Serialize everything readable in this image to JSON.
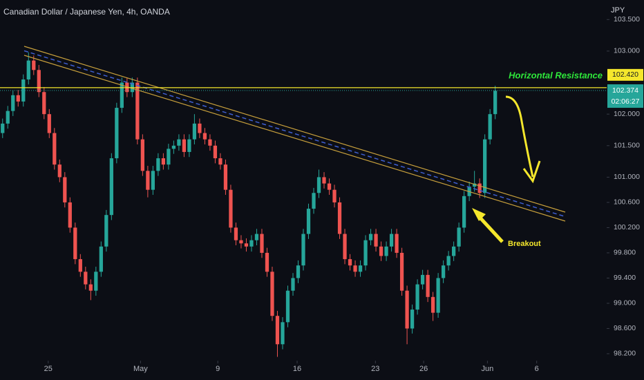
{
  "chart_data": {
    "type": "candlestick",
    "title": "Canadian Dollar / Japanese Yen, 4h, OANDA",
    "currency": "JPY",
    "up_color": "#26a69a",
    "down_color": "#ef5350",
    "grid": false,
    "categories": [
      null,
      null,
      null,
      null,
      null,
      null,
      null,
      null,
      null,
      null,
      null,
      null,
      null,
      null,
      null,
      null,
      null,
      null,
      null,
      null,
      null,
      null,
      null,
      null,
      null,
      null,
      null,
      null,
      null,
      null,
      null,
      null,
      null,
      null,
      null,
      null,
      null,
      null,
      null,
      null,
      null,
      null,
      null,
      null,
      null,
      null,
      null,
      null,
      null,
      null,
      null,
      null,
      null,
      null,
      null,
      null,
      null,
      null,
      null,
      null,
      null,
      null,
      null,
      null,
      null,
      null,
      null,
      null,
      null,
      null,
      null,
      null,
      null,
      null,
      null,
      null,
      null,
      null,
      null,
      null,
      null,
      null,
      null,
      null,
      null,
      null,
      null,
      null,
      null,
      null,
      null,
      null,
      null,
      null,
      null,
      null
    ],
    "open": [
      101.7,
      101.85,
      102.05,
      102.3,
      102.2,
      102.55,
      102.85,
      102.7,
      102.35,
      102.0,
      101.7,
      101.2,
      101.0,
      100.6,
      100.2,
      99.7,
      99.5,
      99.3,
      99.2,
      99.5,
      99.9,
      100.4,
      101.3,
      102.1,
      102.5,
      102.35,
      102.5,
      101.6,
      101.1,
      100.8,
      101.1,
      101.3,
      101.2,
      101.45,
      101.5,
      101.6,
      101.4,
      101.6,
      101.85,
      101.7,
      101.6,
      101.5,
      101.3,
      101.2,
      100.8,
      100.2,
      100.0,
      99.95,
      99.9,
      100.0,
      100.1,
      99.8,
      99.5,
      98.8,
      98.35,
      98.7,
      99.2,
      99.4,
      99.6,
      100.1,
      100.5,
      100.75,
      101.0,
      100.9,
      100.8,
      100.6,
      100.1,
      99.7,
      99.6,
      99.5,
      99.6,
      100.0,
      100.1,
      99.9,
      99.75,
      99.9,
      100.1,
      99.8,
      99.2,
      98.6,
      98.9,
      99.3,
      99.45,
      99.1,
      98.85,
      99.4,
      99.6,
      99.75,
      99.9,
      100.2,
      100.7,
      100.85,
      100.9,
      100.75,
      101.6,
      102.0
    ],
    "high": [
      101.93,
      102.13,
      102.38,
      102.38,
      102.63,
      102.98,
      102.93,
      102.78,
      102.43,
      102.08,
      101.78,
      101.28,
      101.08,
      100.68,
      100.28,
      99.78,
      99.58,
      99.38,
      99.58,
      99.98,
      100.48,
      101.38,
      102.18,
      102.58,
      102.58,
      102.58,
      102.58,
      101.68,
      101.18,
      101.18,
      101.38,
      101.38,
      101.53,
      101.58,
      101.68,
      101.68,
      101.68,
      102.0,
      101.93,
      101.78,
      101.68,
      101.58,
      101.38,
      101.28,
      100.88,
      100.28,
      100.08,
      100.03,
      100.08,
      100.18,
      100.18,
      99.88,
      99.58,
      98.88,
      98.78,
      99.28,
      99.48,
      99.68,
      100.18,
      100.58,
      100.83,
      101.12,
      101.08,
      100.98,
      100.88,
      100.68,
      100.18,
      99.78,
      99.68,
      99.68,
      100.08,
      100.18,
      100.18,
      99.98,
      99.98,
      100.18,
      100.18,
      99.88,
      99.28,
      98.98,
      99.38,
      99.53,
      99.53,
      99.18,
      99.48,
      99.68,
      99.83,
      99.98,
      100.28,
      100.78,
      100.93,
      101.1,
      100.98,
      101.68,
      102.08,
      102.45
    ],
    "low": [
      101.62,
      101.77,
      101.97,
      102.12,
      102.12,
      102.47,
      102.62,
      102.27,
      101.92,
      101.62,
      101.12,
      100.92,
      100.52,
      100.12,
      99.62,
      99.42,
      99.22,
      99.05,
      99.12,
      99.42,
      99.82,
      100.32,
      101.22,
      102.02,
      102.27,
      102.27,
      101.52,
      101.02,
      100.68,
      100.72,
      101.02,
      101.12,
      101.12,
      101.37,
      101.42,
      101.32,
      101.32,
      101.52,
      101.62,
      101.52,
      101.42,
      101.22,
      101.12,
      100.72,
      100.12,
      99.92,
      99.87,
      99.82,
      99.82,
      99.92,
      99.72,
      99.42,
      98.72,
      98.15,
      98.27,
      98.62,
      99.12,
      99.32,
      99.52,
      100.02,
      100.42,
      100.67,
      100.82,
      100.72,
      100.52,
      100.02,
      99.62,
      99.52,
      99.42,
      99.42,
      99.52,
      99.92,
      99.82,
      99.67,
      99.67,
      99.82,
      99.72,
      99.12,
      98.35,
      98.52,
      98.82,
      99.22,
      99.02,
      98.72,
      98.77,
      99.32,
      99.52,
      99.67,
      99.82,
      100.12,
      100.62,
      100.77,
      100.67,
      100.67,
      101.52,
      101.92
    ],
    "close": [
      101.85,
      102.05,
      102.3,
      102.2,
      102.55,
      102.85,
      102.7,
      102.35,
      102.0,
      101.7,
      101.2,
      101.0,
      100.6,
      100.2,
      99.7,
      99.5,
      99.3,
      99.2,
      99.5,
      99.9,
      100.4,
      101.3,
      102.1,
      102.5,
      102.35,
      102.5,
      101.6,
      101.1,
      100.8,
      101.1,
      101.3,
      101.2,
      101.45,
      101.5,
      101.6,
      101.4,
      101.6,
      101.85,
      101.7,
      101.6,
      101.5,
      101.3,
      101.2,
      100.8,
      100.2,
      100.0,
      99.95,
      99.9,
      100.0,
      100.1,
      99.8,
      99.5,
      98.8,
      98.35,
      98.7,
      99.2,
      99.4,
      99.6,
      100.1,
      100.5,
      100.75,
      101.0,
      100.9,
      100.8,
      100.6,
      100.1,
      99.7,
      99.6,
      99.5,
      99.6,
      100.0,
      100.1,
      99.9,
      99.75,
      99.9,
      100.1,
      99.8,
      99.2,
      98.6,
      98.9,
      99.3,
      99.45,
      99.1,
      98.85,
      99.4,
      99.6,
      99.75,
      99.9,
      100.2,
      100.7,
      100.85,
      100.9,
      100.75,
      101.6,
      102.0,
      102.37
    ],
    "xlim": [
      -0.5,
      116.5
    ],
    "ylim": [
      98.09,
      103.81
    ],
    "xticks": [
      {
        "value": 8.8,
        "label": "25"
      },
      {
        "value": 26.6,
        "label": "May"
      },
      {
        "value": 41.5,
        "label": "9"
      },
      {
        "value": 56.8,
        "label": "16"
      },
      {
        "value": 71.9,
        "label": "23"
      },
      {
        "value": 81.2,
        "label": "26"
      },
      {
        "value": 93.5,
        "label": "Jun"
      },
      {
        "value": 103,
        "label": "6"
      }
    ],
    "yticks": [
      {
        "value": 98.2,
        "label": "98.200"
      },
      {
        "value": 98.6,
        "label": "98.600"
      },
      {
        "value": 99.0,
        "label": "99.000"
      },
      {
        "value": 99.4,
        "label": "99.400"
      },
      {
        "value": 99.8,
        "label": "99.800"
      },
      {
        "value": 100.2,
        "label": "100.200"
      },
      {
        "value": 100.6,
        "label": "100.600"
      },
      {
        "value": 101.0,
        "label": "101.000"
      },
      {
        "value": 101.5,
        "label": "101.500"
      },
      {
        "value": 102.0,
        "label": "102.000"
      },
      {
        "value": 103.0,
        "label": "103.000"
      },
      {
        "value": 103.5,
        "label": "103.500"
      }
    ],
    "resistance": {
      "value": 102.42,
      "label": "102.420",
      "name": "Horizontal Resistance"
    },
    "last_price": {
      "value": 102.374,
      "label": "102.374",
      "countdown": "02:06:27"
    },
    "annotations": [
      "Breakout"
    ]
  }
}
